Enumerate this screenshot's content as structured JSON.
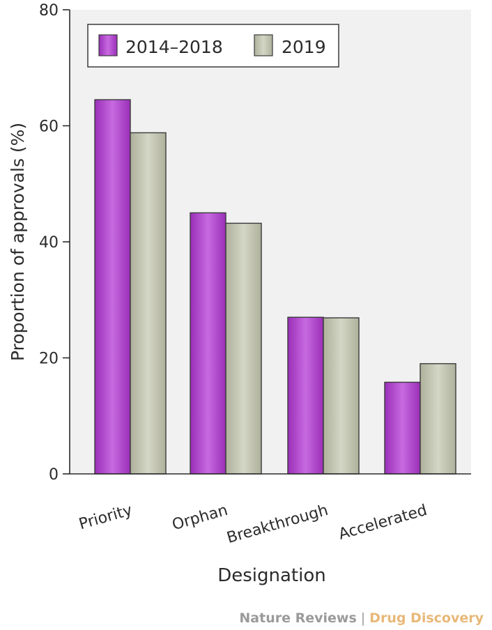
{
  "chart_data": {
    "type": "bar",
    "categories": [
      "Priority",
      "Orphan",
      "Breakthrough",
      "Accelerated"
    ],
    "series": [
      {
        "name": "2014–2018",
        "values": [
          64.5,
          45.0,
          27.0,
          15.8
        ]
      },
      {
        "name": "2019",
        "values": [
          58.8,
          43.2,
          26.9,
          19.0
        ]
      }
    ],
    "title": "",
    "xlabel": "Designation",
    "ylabel": "Proportion of approvals (%)",
    "ylim": [
      0,
      80
    ],
    "yticks": [
      "0",
      "20",
      "40",
      "60",
      "80"
    ],
    "legend": "top-left",
    "grid": false,
    "colors": {
      "series_2014_2018": "#b44fd0",
      "series_2019": "#c2c4b0",
      "plot_background": "#f1f1f1",
      "bar_stroke": "#3a3a3a"
    }
  },
  "credit": {
    "publisher": "Nature Reviews",
    "separator": "|",
    "journal": "Drug Discovery"
  }
}
